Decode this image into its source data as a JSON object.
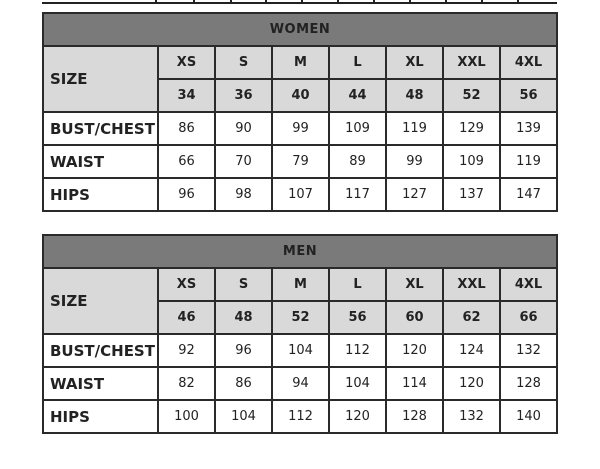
{
  "colors": {
    "header_bg": "#7a7a7a",
    "subheader_bg": "#d9d9d9",
    "border": "#2a2a2a"
  },
  "tables": [
    {
      "title": "WOMEN",
      "size_label": "SIZE",
      "sizes": [
        "XS",
        "S",
        "M",
        "L",
        "XL",
        "XXL",
        "4XL"
      ],
      "numbers": [
        "34",
        "36",
        "40",
        "44",
        "48",
        "52",
        "56"
      ],
      "rows": [
        {
          "label": "BUST/CHEST",
          "values": [
            "86",
            "90",
            "99",
            "109",
            "119",
            "129",
            "139"
          ]
        },
        {
          "label": "WAIST",
          "values": [
            "66",
            "70",
            "79",
            "89",
            "99",
            "109",
            "119"
          ]
        },
        {
          "label": "HIPS",
          "values": [
            "96",
            "98",
            "107",
            "117",
            "127",
            "137",
            "147"
          ]
        }
      ]
    },
    {
      "title": "MEN",
      "size_label": "SIZE",
      "sizes": [
        "XS",
        "S",
        "M",
        "L",
        "XL",
        "XXL",
        "4XL"
      ],
      "numbers": [
        "46",
        "48",
        "52",
        "56",
        "60",
        "62",
        "66"
      ],
      "rows": [
        {
          "label": "BUST/CHEST",
          "values": [
            "92",
            "96",
            "104",
            "112",
            "120",
            "124",
            "132"
          ]
        },
        {
          "label": "WAIST",
          "values": [
            "82",
            "86",
            "94",
            "104",
            "114",
            "120",
            "128"
          ]
        },
        {
          "label": "HIPS",
          "values": [
            "100",
            "104",
            "112",
            "120",
            "128",
            "132",
            "140"
          ]
        }
      ]
    }
  ]
}
